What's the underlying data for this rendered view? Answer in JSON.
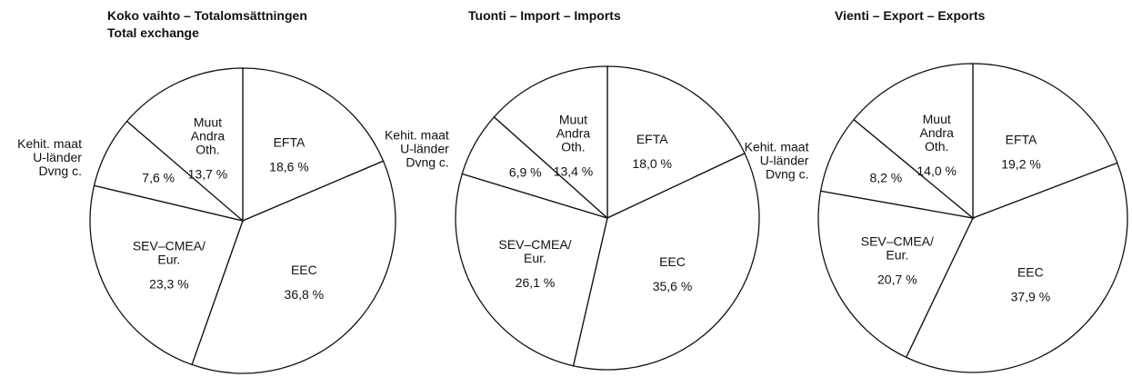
{
  "chart_data": [
    {
      "type": "pie",
      "title": "Koko vaihto – Totalomsättningen\nTotal exchange",
      "color": "#ffffff",
      "categories": [
        "EFTA",
        "EEC",
        "SEV–CMEA/\nEur.",
        "Kehit. maat\nU-länder\nDvng c.",
        "Muut\nAndra\nOth."
      ],
      "values": [
        18.6,
        36.8,
        23.3,
        7.6,
        13.7
      ],
      "value_labels": [
        "18,6 %",
        "36,8 %",
        "23,3 %",
        "7,6 %",
        "13,7 %"
      ]
    },
    {
      "type": "pie",
      "title": "Tuonti – Import – Imports",
      "color": "#ffffff",
      "categories": [
        "EFTA",
        "EEC",
        "SEV–CMEA/\nEur.",
        "Kehit. maat\nU-länder\nDvng c.",
        "Muut\nAndra\nOth."
      ],
      "values": [
        18.0,
        35.6,
        26.1,
        6.9,
        13.4
      ],
      "value_labels": [
        "18,0 %",
        "35,6 %",
        "26,1 %",
        "6,9 %",
        "13,4 %"
      ]
    },
    {
      "type": "pie",
      "title": "Vienti – Export – Exports",
      "color": "#ffffff",
      "categories": [
        "EFTA",
        "EEC",
        "SEV–CMEA/\nEur.",
        "Kehit. maat\nU-länder\nDvng c.",
        "Muut\nAndra\nOth."
      ],
      "values": [
        19.2,
        37.9,
        20.7,
        8.2,
        14.0
      ],
      "value_labels": [
        "19,2 %",
        "37,9 %",
        "20,7 %",
        "8,2 %",
        "14,0 %"
      ]
    }
  ]
}
